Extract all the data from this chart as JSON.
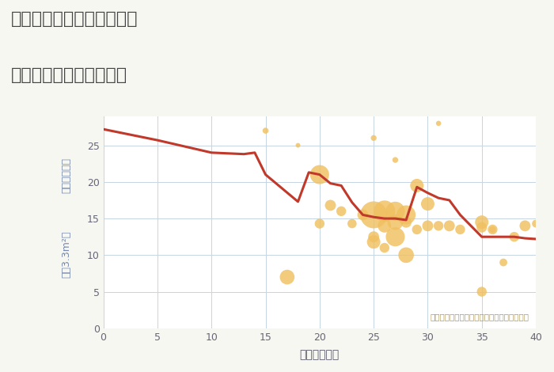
{
  "title_line1": "三重県津市白山町上ノ村の",
  "title_line2": "築年数別中古戸建て価格",
  "xlabel": "築年数（年）",
  "ylabel_top": "単価（万円）",
  "ylabel_bottom": "坪（3.3m²）",
  "annotation": "円の大きさは、取引のあった物件面積を示す",
  "bg_color": "#f7f7f2",
  "plot_bg_color": "#ffffff",
  "xlim": [
    0,
    40
  ],
  "ylim": [
    0,
    29
  ],
  "xticks": [
    0,
    5,
    10,
    15,
    20,
    25,
    30,
    35,
    40
  ],
  "yticks": [
    0,
    5,
    10,
    15,
    20,
    25
  ],
  "line_x": [
    0,
    5,
    10,
    13,
    14,
    15,
    18,
    19,
    20,
    21,
    22,
    23,
    24,
    25,
    26,
    27,
    28,
    29,
    30,
    31,
    32,
    33,
    35,
    37,
    38,
    39,
    40
  ],
  "line_y": [
    27.2,
    25.7,
    24.0,
    23.8,
    24.0,
    21.0,
    17.3,
    21.3,
    21.0,
    19.8,
    19.5,
    17.2,
    15.5,
    15.2,
    15.0,
    15.0,
    14.8,
    19.3,
    18.5,
    17.8,
    17.5,
    15.5,
    12.5,
    12.5,
    12.5,
    12.3,
    12.2
  ],
  "line_color": "#c0392b",
  "line_width": 2.2,
  "scatter_x": [
    15,
    17,
    18,
    20,
    20,
    21,
    22,
    23,
    24,
    25,
    25,
    25,
    26,
    26,
    26,
    27,
    27,
    27,
    28,
    28,
    28,
    29,
    29,
    30,
    30,
    31,
    32,
    33,
    35,
    35,
    36,
    37,
    38,
    39,
    40
  ],
  "scatter_y": [
    27.0,
    7.0,
    25.0,
    21.0,
    14.3,
    16.8,
    16.0,
    14.3,
    15.5,
    15.5,
    11.8,
    12.5,
    16.0,
    14.0,
    11.0,
    16.0,
    14.5,
    12.5,
    15.5,
    10.0,
    14.5,
    19.5,
    13.5,
    14.0,
    17.0,
    14.0,
    14.0,
    13.5,
    13.8,
    14.5,
    13.5,
    9.0,
    12.5,
    14.0,
    14.3
  ],
  "scatter_sizes": [
    30,
    180,
    18,
    300,
    80,
    100,
    80,
    70,
    100,
    600,
    150,
    100,
    380,
    150,
    80,
    300,
    200,
    300,
    300,
    200,
    100,
    150,
    80,
    100,
    150,
    80,
    100,
    80,
    90,
    150,
    80,
    50,
    80,
    100,
    50
  ],
  "extra_x": [
    25,
    27,
    31,
    35,
    36
  ],
  "extra_y": [
    26.0,
    23.0,
    28.0,
    5.0,
    13.5
  ],
  "extra_sizes": [
    28,
    28,
    22,
    80,
    35
  ],
  "scatter_color": "#f0c060",
  "scatter_alpha": 0.82,
  "grid_color": "#c5d5e5",
  "title_color": "#444444",
  "tick_color": "#666677",
  "annotation_color": "#b09858",
  "xlabel_color": "#555566",
  "ylabel_color": "#7788aa"
}
